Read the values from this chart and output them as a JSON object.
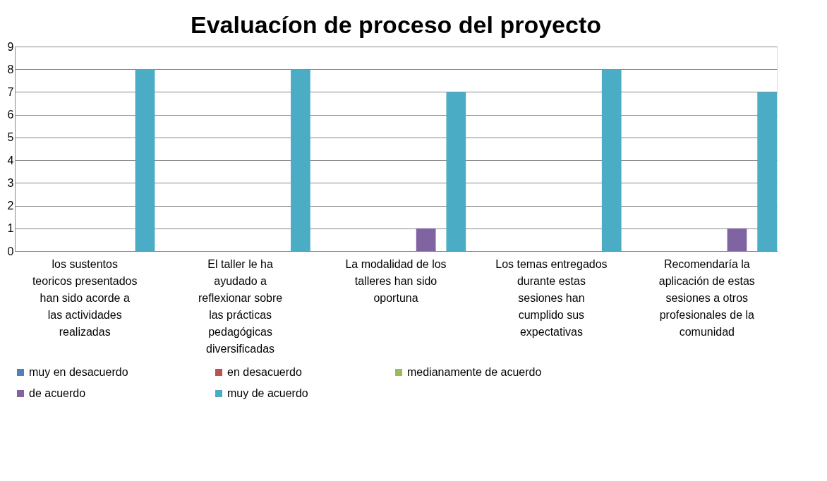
{
  "chart_data": {
    "type": "bar",
    "title": "Evaluacíon de proceso del proyecto",
    "categories": [
      "los sustentos teoricos presentados han sido acorde a las actividades realizadas",
      "El taller le ha ayudado a reflexionar sobre las prácticas pedagógicas diversificadas",
      "La modalidad de los talleres han sido oportuna",
      "Los temas entregados durante estas sesiones han cumplido sus expectativas",
      "Recomendaría la aplicación de estas sesiones a otros profesionales de la comunidad"
    ],
    "series": [
      {
        "name": "muy en desacuerdo",
        "color": "#4f81bd",
        "values": [
          0,
          0,
          0,
          0,
          0
        ]
      },
      {
        "name": "en desacuerdo",
        "color": "#c0504d",
        "values": [
          0,
          0,
          0,
          0,
          0
        ]
      },
      {
        "name": "medianamente de acuerdo",
        "color": "#9bbb59",
        "values": [
          0,
          0,
          0,
          0,
          0
        ]
      },
      {
        "name": "de acuerdo",
        "color": "#8064a2",
        "values": [
          0,
          0,
          1,
          0,
          1
        ]
      },
      {
        "name": "muy de acuerdo",
        "color": "#4bacc6",
        "values": [
          8,
          8,
          7,
          8,
          7
        ]
      }
    ],
    "ylim": [
      0,
      9
    ],
    "yticks": [
      0,
      1,
      2,
      3,
      4,
      5,
      6,
      7,
      8,
      9
    ],
    "grid": "y",
    "legend": "bottom"
  }
}
